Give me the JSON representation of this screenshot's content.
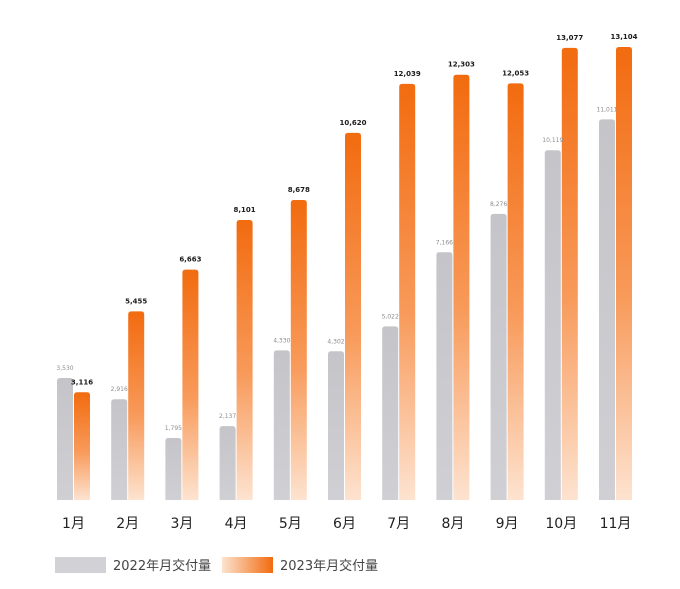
{
  "chart_data": {
    "type": "bar",
    "title": "",
    "xlabel": "",
    "ylabel": "",
    "categories": [
      "1月",
      "2月",
      "3月",
      "4月",
      "5月",
      "6月",
      "7月",
      "8月",
      "9月",
      "10月",
      "11月"
    ],
    "series": [
      {
        "name": "2022年月交付量",
        "values": [
          3530,
          2916,
          1795,
          2137,
          4330,
          4302,
          5022,
          7166,
          8276,
          10119,
          11011
        ],
        "value_labels": [
          "3,530",
          "2,916",
          "1,795",
          "2,137",
          "4,330",
          "4,302",
          "5,022",
          "7,166",
          "8,276",
          "10,119",
          "11,011"
        ],
        "color": "#c9c9ce"
      },
      {
        "name": "2023年月交付量",
        "values": [
          3116,
          5455,
          6663,
          8101,
          8678,
          10620,
          12039,
          12303,
          12053,
          13077,
          13104
        ],
        "value_labels": [
          "3,116",
          "5,455",
          "6,663",
          "8,101",
          "8,678",
          "10,620",
          "12,039",
          "12,303",
          "12,053",
          "13,077",
          "13,104"
        ],
        "color": "#f26b0f"
      }
    ],
    "ylim": [
      0,
      13104
    ],
    "grid": false,
    "legend_position": "bottom-left"
  }
}
